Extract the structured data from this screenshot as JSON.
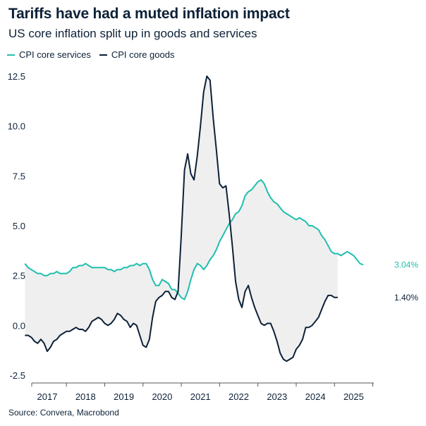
{
  "chart_data": {
    "type": "line",
    "title": "Tariffs have had a muted inflation impact",
    "subtitle": "US core inflation split up in goods and services",
    "source": "Source: Convera, Macrobond",
    "xlabel": "",
    "ylabel": "",
    "ylim": [
      -2.5,
      12.5
    ],
    "yticks": [
      "12.5",
      "10.0",
      "7.5",
      "5.0",
      "2.5",
      "0.0",
      "-2.5"
    ],
    "xticks": [
      "2017",
      "2018",
      "2019",
      "2020",
      "2021",
      "2022",
      "2023",
      "2024",
      "2025"
    ],
    "grid": false,
    "legend_position": "top-left",
    "shaded_between_series": true,
    "colors": {
      "services": "#1fbfae",
      "goods": "#0d2137",
      "fill": "#efefef",
      "axis": "#555555"
    },
    "series": [
      {
        "name": "CPI core services",
        "end_label": "3.04%",
        "x_start": "2016-06",
        "x_step": "month",
        "values": [
          3.1,
          2.9,
          2.8,
          2.7,
          2.6,
          2.6,
          2.5,
          2.5,
          2.6,
          2.6,
          2.7,
          2.6,
          2.6,
          2.6,
          2.7,
          2.9,
          2.9,
          3.0,
          3.0,
          3.1,
          3.0,
          2.9,
          2.9,
          2.9,
          2.9,
          2.9,
          2.8,
          2.8,
          2.7,
          2.8,
          2.8,
          2.9,
          2.9,
          3.0,
          3.0,
          3.1,
          3.0,
          3.1,
          3.1,
          2.8,
          2.3,
          2.0,
          2.0,
          2.3,
          2.2,
          2.1,
          1.8,
          1.8,
          1.6,
          1.4,
          1.3,
          1.7,
          2.3,
          2.8,
          3.1,
          3.0,
          2.8,
          3.0,
          3.3,
          3.5,
          3.8,
          4.2,
          4.5,
          4.8,
          5.1,
          5.3,
          5.6,
          5.7,
          6.0,
          6.5,
          6.7,
          6.8,
          7.0,
          7.2,
          7.3,
          7.1,
          6.7,
          6.4,
          6.2,
          6.1,
          5.9,
          5.7,
          5.6,
          5.5,
          5.4,
          5.3,
          5.4,
          5.3,
          5.2,
          5.0,
          5.0,
          4.9,
          4.8,
          4.5,
          4.3,
          4.0,
          3.7,
          3.6,
          3.6,
          3.5,
          3.6,
          3.7,
          3.6,
          3.5,
          3.3,
          3.1,
          3.04
        ]
      },
      {
        "name": "CPI core goods",
        "end_label": "1.40%",
        "x_start": "2016-06",
        "x_step": "month",
        "values": [
          -0.5,
          -0.5,
          -0.6,
          -0.8,
          -0.9,
          -0.7,
          -0.9,
          -1.3,
          -1.1,
          -0.8,
          -0.7,
          -0.5,
          -0.4,
          -0.3,
          -0.3,
          -0.2,
          -0.1,
          -0.2,
          -0.2,
          -0.3,
          -0.1,
          0.2,
          0.3,
          0.4,
          0.3,
          0.1,
          0.0,
          0.1,
          0.3,
          0.6,
          0.5,
          0.3,
          0.2,
          -0.1,
          0.1,
          0.0,
          -0.5,
          -1.0,
          -1.1,
          -0.7,
          0.4,
          1.2,
          1.4,
          1.5,
          1.7,
          1.7,
          1.4,
          1.3,
          1.7,
          4.5,
          7.8,
          8.6,
          7.6,
          7.3,
          8.5,
          10.0,
          11.7,
          12.5,
          12.3,
          10.4,
          8.8,
          7.1,
          6.9,
          7.0,
          5.6,
          4.0,
          2.2,
          1.3,
          0.9,
          1.7,
          2.0,
          1.4,
          0.9,
          0.5,
          0.1,
          0.0,
          0.1,
          0.1,
          -0.3,
          -0.8,
          -1.4,
          -1.7,
          -1.8,
          -1.7,
          -1.6,
          -1.2,
          -1.0,
          -0.7,
          -0.1,
          -0.1,
          0.0,
          0.2,
          0.4,
          0.8,
          1.2,
          1.5,
          1.5,
          1.4,
          1.4
        ]
      }
    ]
  }
}
